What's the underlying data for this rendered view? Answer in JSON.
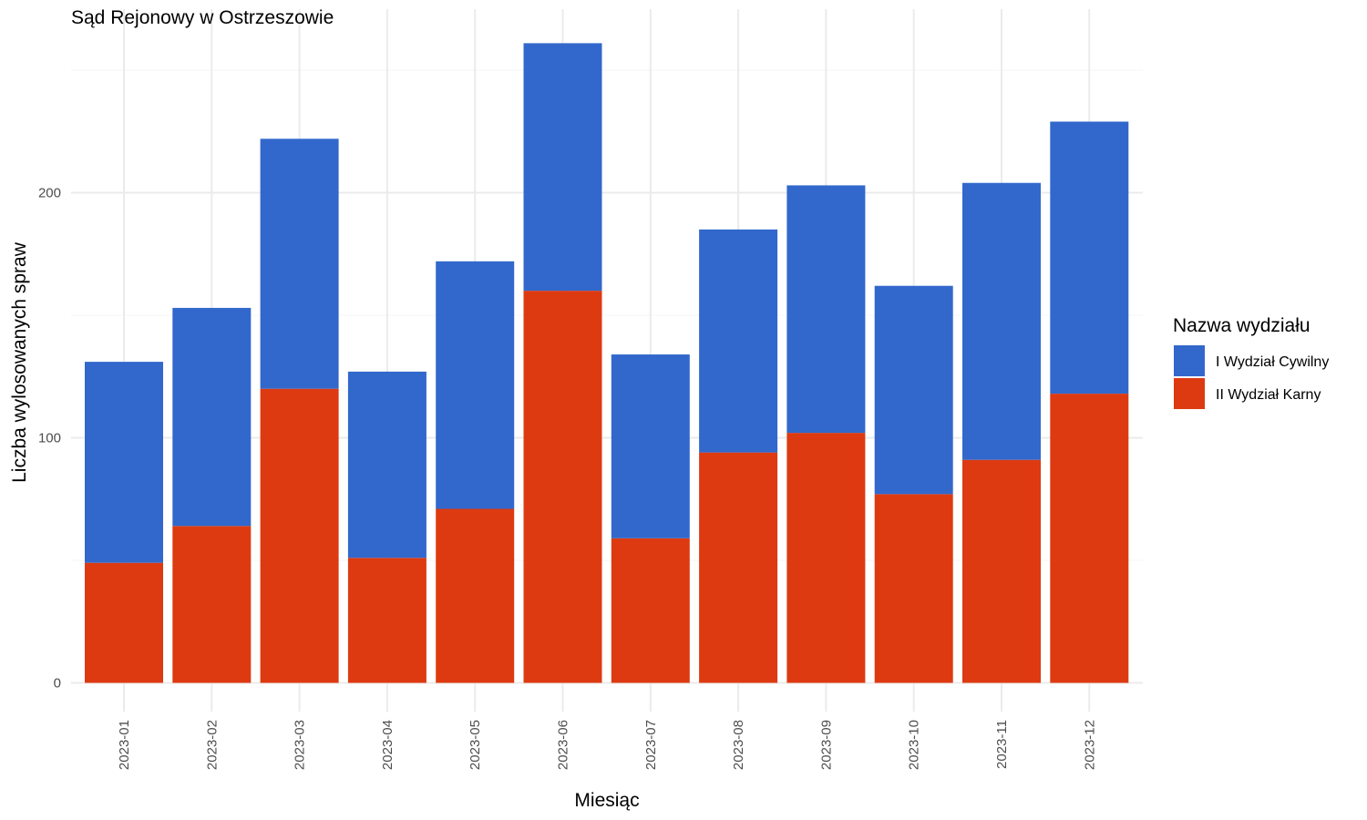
{
  "chart_data": {
    "type": "bar",
    "stacked": true,
    "title": "Sąd Rejonowy w Ostrzeszowie",
    "xlabel": "Miesiąc",
    "ylabel": "Liczba wylosowanych spraw",
    "categories": [
      "2023-01",
      "2023-02",
      "2023-03",
      "2023-04",
      "2023-05",
      "2023-06",
      "2023-07",
      "2023-08",
      "2023-09",
      "2023-10",
      "2023-11",
      "2023-12"
    ],
    "series": [
      {
        "name": "II Wydział Karny",
        "color": "#DD3A12",
        "values": [
          49,
          64,
          120,
          51,
          71,
          160,
          59,
          94,
          102,
          77,
          91,
          118
        ]
      },
      {
        "name": "I Wydział Cywilny",
        "color": "#3268CC",
        "values": [
          82,
          89,
          102,
          76,
          101,
          101,
          75,
          91,
          101,
          85,
          113,
          111
        ]
      }
    ],
    "ylim": [
      0,
      275
    ],
    "yticks": [
      0,
      100,
      200
    ],
    "grid": true,
    "legend": {
      "title": "Nazwa wydziału",
      "position": "right",
      "entries": [
        "I Wydział Cywilny",
        "II Wydział Karny"
      ]
    }
  }
}
